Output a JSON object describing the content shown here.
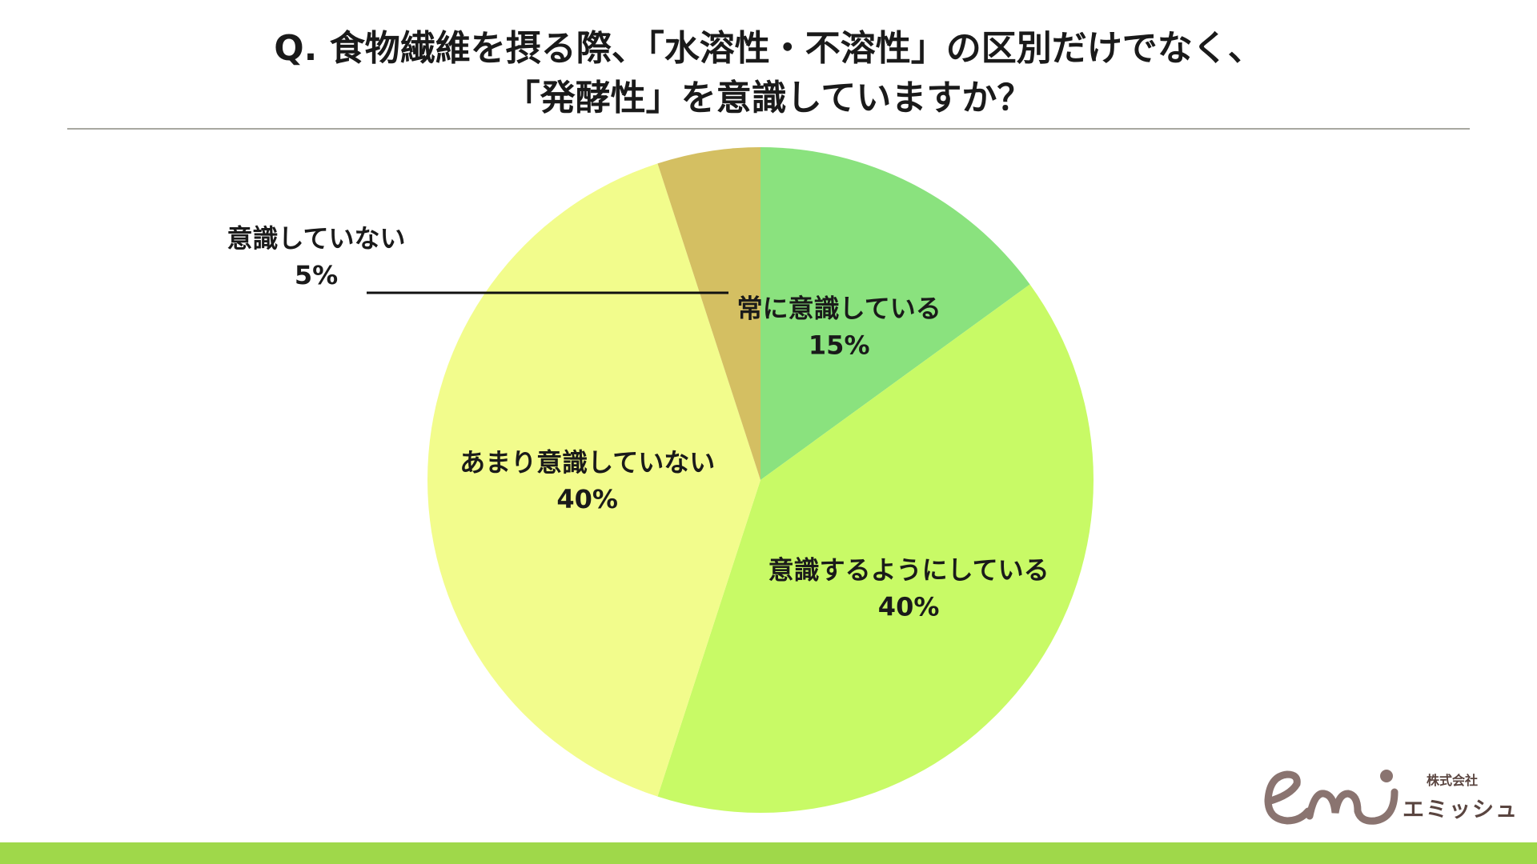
{
  "title": {
    "line1": "Q.  食物繊維を摂る際、「水溶性・不溶性」の区別だけでなく、",
    "line2": "「発酵性」を意識していますか？"
  },
  "chart_data": {
    "type": "pie",
    "start_angle_deg": 0,
    "direction": "clockwise",
    "slices": [
      {
        "label": "常に意識している",
        "value": 15,
        "value_label": "15%",
        "color": "#8ae27e"
      },
      {
        "label": "意識するようにしている",
        "value": 40,
        "value_label": "40%",
        "color": "#c8fa66"
      },
      {
        "label": "あまり意識していない",
        "value": 40,
        "value_label": "40%",
        "color": "#f2fc8c"
      },
      {
        "label": "意識していない",
        "value": 5,
        "value_label": "5%",
        "color": "#d4bf62"
      }
    ]
  },
  "logo": {
    "company_type": "株式会社",
    "company_name": "エミッシュ",
    "color": "#8a7470"
  },
  "colors": {
    "rule": "#a8a8a0",
    "bottom_bar": "#9fd84a"
  }
}
